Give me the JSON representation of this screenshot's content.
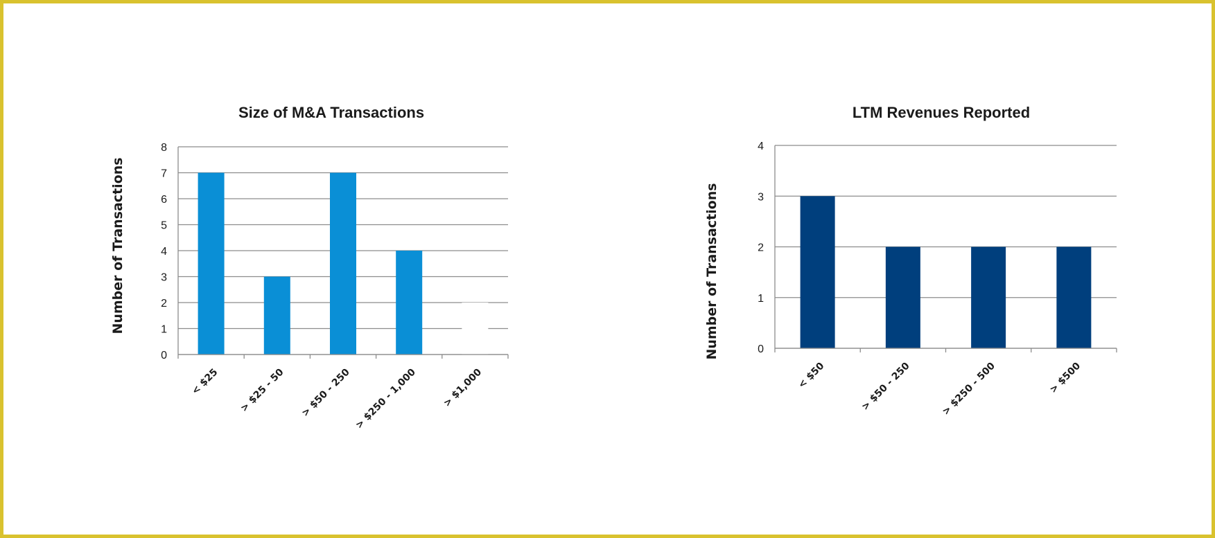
{
  "chart_data": [
    {
      "type": "bar",
      "title": "Size of M&A Transactions",
      "xlabel": "",
      "ylabel": "Number of Transactions",
      "categories": [
        "< $25",
        "> $25 - 50",
        "> $50 - 250",
        "> $250 - 1,000",
        "> $1,000"
      ],
      "values": [
        7,
        3,
        7,
        4,
        2
      ],
      "ylim": [
        0,
        8
      ],
      "yticks": [
        0,
        1,
        2,
        3,
        4,
        5,
        6,
        7,
        8
      ],
      "grid": true,
      "bar_colors": [
        "#0a8fd6",
        "#0a8fd6",
        "#0a8fd6",
        "#0a8fd6",
        "#ffffff"
      ]
    },
    {
      "type": "bar",
      "title": "LTM Revenues Reported",
      "xlabel": "",
      "ylabel": "Number of Transactions",
      "categories": [
        "< $50",
        "> $50 - 250",
        "> $250 - 500",
        "> $500"
      ],
      "values": [
        3,
        2,
        2,
        2
      ],
      "ylim": [
        0,
        4
      ],
      "yticks": [
        0,
        1,
        2,
        3,
        4
      ],
      "grid": true,
      "bar_colors": [
        "#003f7d",
        "#003f7d",
        "#003f7d",
        "#003f7d"
      ]
    }
  ],
  "colors": {
    "frame_border": "#d9c22e",
    "gridline": "#8c8c8c"
  }
}
